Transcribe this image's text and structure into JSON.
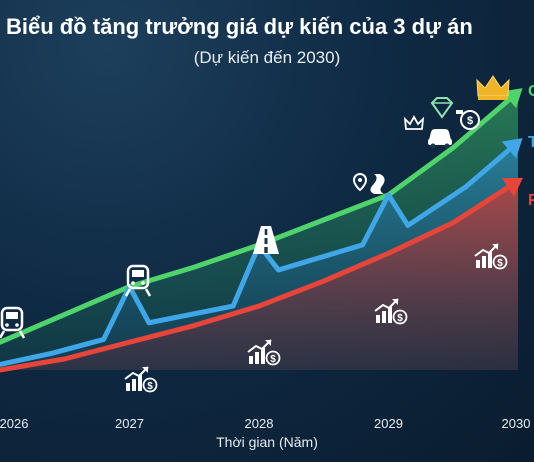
{
  "title": "Biểu đồ tăng trưởng giá dự kiến của 3 dự án",
  "subtitle": "(Dự kiến đến 2030)",
  "chart_data": {
    "type": "line",
    "title": "Biểu đồ tăng trưởng giá dự kiến của 3 dự án",
    "subtitle": "(Dự kiến đến 2030)",
    "xlabel": "Thời gian (Năm)",
    "ylabel": "",
    "x": [
      2026,
      2027,
      2028,
      2029,
      2030
    ],
    "xlim": [
      2026,
      2030
    ],
    "ylim": [
      0,
      100
    ],
    "grid": false,
    "legend": "right (partially cut off)",
    "series": [
      {
        "name": "",
        "color": "#4fd36b",
        "points": [
          [
            2026,
            10
          ],
          [
            2026.5,
            20
          ],
          [
            2027,
            30
          ],
          [
            2027.5,
            37
          ],
          [
            2028,
            45
          ],
          [
            2028.5,
            54
          ],
          [
            2029,
            63
          ],
          [
            2029.5,
            80
          ],
          [
            2030,
            100
          ]
        ]
      },
      {
        "name": "",
        "color": "#3fa7e8",
        "points": [
          [
            2026,
            2
          ],
          [
            2026.4,
            6
          ],
          [
            2026.8,
            11
          ],
          [
            2027,
            30
          ],
          [
            2027.15,
            17
          ],
          [
            2027.8,
            23
          ],
          [
            2028,
            45
          ],
          [
            2028.15,
            36
          ],
          [
            2028.8,
            45
          ],
          [
            2029,
            63
          ],
          [
            2029.15,
            52
          ],
          [
            2029.6,
            66
          ],
          [
            2030,
            82
          ]
        ]
      },
      {
        "name": "",
        "color": "#e8453a",
        "points": [
          [
            2026,
            0
          ],
          [
            2026.5,
            4
          ],
          [
            2027,
            10
          ],
          [
            2027.5,
            16
          ],
          [
            2028,
            23
          ],
          [
            2028.5,
            32
          ],
          [
            2029,
            42
          ],
          [
            2029.5,
            53
          ],
          [
            2030,
            68
          ]
        ]
      }
    ],
    "legend_labels": [
      "C",
      "T",
      "F"
    ],
    "annotations": [
      "train",
      "train",
      "highway",
      "map-pin-road",
      "crown",
      "diamond",
      "car",
      "money",
      "growth-chart"
    ]
  },
  "icons": {
    "train": "train-icon",
    "highway": "highway-icon",
    "map_road": "map-pin-road-icon",
    "crown": "crown-icon",
    "diamond": "diamond-icon",
    "car": "car-icon",
    "money": "money-bag-icon",
    "growth": "growth-chart-icon"
  },
  "colors": {
    "green": "#4fd36b",
    "blue": "#3fa7e8",
    "red": "#e8453a",
    "gold": "#f0b429",
    "axis_text": "#e6edf4"
  }
}
